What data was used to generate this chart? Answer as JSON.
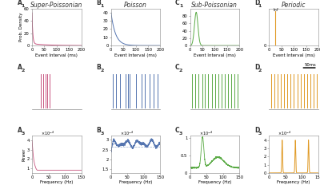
{
  "colors": {
    "A": "#c85580",
    "B": "#5575b0",
    "C": "#5aaa45",
    "D": "#e09a25"
  },
  "titles": {
    "A": "Super-Poissonian",
    "B": "Poisson",
    "C": "Sub-Poissonian",
    "D": "Periodic"
  },
  "bg_color": "#ffffff",
  "xlabel_isi": "Event Interval (ms)",
  "xlabel_freq": "Frequency (Hz)",
  "ylabel_prob": "Prob. Density",
  "ylabel_power": "Power",
  "title_fontsize": 5.5,
  "label_fontsize": 4.0,
  "tick_fontsize": 3.8
}
